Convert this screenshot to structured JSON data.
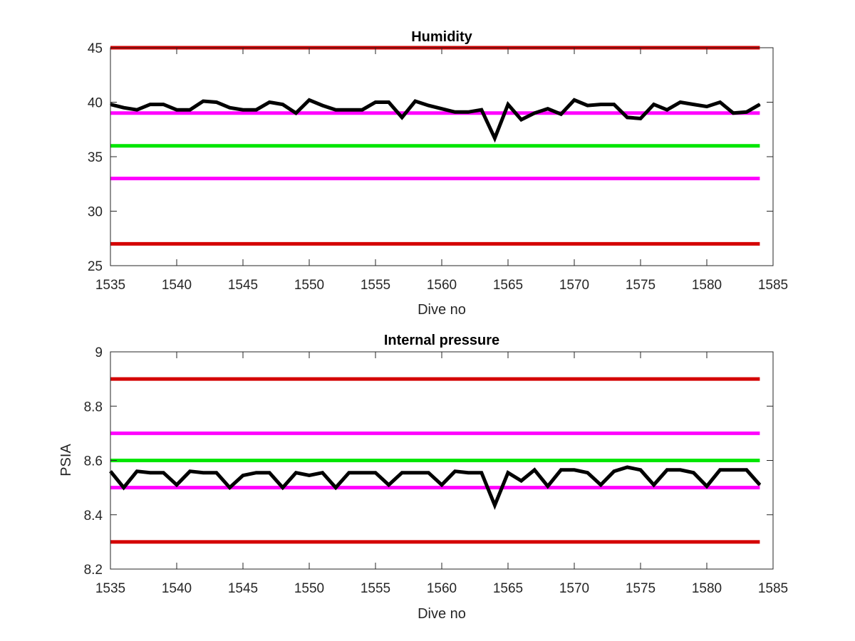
{
  "figure": {
    "background": "#ffffff"
  },
  "chart_data": [
    {
      "type": "line",
      "title": "Humidity",
      "xlabel": "Dive no",
      "ylabel": "",
      "xlim": [
        1535,
        1585
      ],
      "ylim": [
        25,
        45
      ],
      "xticks": [
        1535,
        1540,
        1545,
        1550,
        1555,
        1560,
        1565,
        1570,
        1575,
        1580,
        1585
      ],
      "yticks": [
        25,
        30,
        35,
        40,
        45
      ],
      "grid": false,
      "legend": "none",
      "reference_lines": [
        {
          "y": 45,
          "color": "#d40000"
        },
        {
          "y": 39,
          "color": "#ff00ff"
        },
        {
          "y": 36,
          "color": "#00e600"
        },
        {
          "y": 33,
          "color": "#ff00ff"
        },
        {
          "y": 27,
          "color": "#d40000"
        }
      ],
      "series": [
        {
          "color": "#000000",
          "x": [
            1535,
            1536,
            1537,
            1538,
            1539,
            1540,
            1541,
            1542,
            1543,
            1544,
            1545,
            1546,
            1547,
            1548,
            1549,
            1550,
            1551,
            1552,
            1553,
            1554,
            1555,
            1556,
            1557,
            1558,
            1559,
            1560,
            1561,
            1562,
            1563,
            1564,
            1565,
            1566,
            1567,
            1568,
            1569,
            1570,
            1571,
            1572,
            1573,
            1574,
            1575,
            1576,
            1577,
            1578,
            1579,
            1580,
            1581,
            1582,
            1583,
            1584
          ],
          "y": [
            39.8,
            39.5,
            39.3,
            39.8,
            39.8,
            39.3,
            39.3,
            40.1,
            40.0,
            39.5,
            39.3,
            39.3,
            40.0,
            39.8,
            39.0,
            40.2,
            39.7,
            39.3,
            39.3,
            39.3,
            40.0,
            40.0,
            38.6,
            40.1,
            39.7,
            39.4,
            39.1,
            39.1,
            39.3,
            36.7,
            39.8,
            38.4,
            39.0,
            39.4,
            38.9,
            40.2,
            39.7,
            39.8,
            39.8,
            38.6,
            38.5,
            39.8,
            39.3,
            40.0,
            39.8,
            39.6,
            40.0,
            39.0,
            39.1,
            39.8
          ]
        }
      ]
    },
    {
      "type": "line",
      "title": "Internal pressure",
      "xlabel": "Dive no",
      "ylabel": "PSIA",
      "xlim": [
        1535,
        1585
      ],
      "ylim": [
        8.2,
        9
      ],
      "xticks": [
        1535,
        1540,
        1545,
        1550,
        1555,
        1560,
        1565,
        1570,
        1575,
        1580,
        1585
      ],
      "yticks": [
        8.2,
        8.4,
        8.6,
        8.8,
        9
      ],
      "grid": false,
      "legend": "none",
      "reference_lines": [
        {
          "y": 8.9,
          "color": "#d40000"
        },
        {
          "y": 8.7,
          "color": "#ff00ff"
        },
        {
          "y": 8.6,
          "color": "#00e600"
        },
        {
          "y": 8.5,
          "color": "#ff00ff"
        },
        {
          "y": 8.3,
          "color": "#d40000"
        }
      ],
      "series": [
        {
          "color": "#000000",
          "x": [
            1535,
            1536,
            1537,
            1538,
            1539,
            1540,
            1541,
            1542,
            1543,
            1544,
            1545,
            1546,
            1547,
            1548,
            1549,
            1550,
            1551,
            1552,
            1553,
            1554,
            1555,
            1556,
            1557,
            1558,
            1559,
            1560,
            1561,
            1562,
            1563,
            1564,
            1565,
            1566,
            1567,
            1568,
            1569,
            1570,
            1571,
            1572,
            1573,
            1574,
            1575,
            1576,
            1577,
            1578,
            1579,
            1580,
            1581,
            1582,
            1583,
            1584
          ],
          "y": [
            8.56,
            8.5,
            8.56,
            8.555,
            8.555,
            8.51,
            8.56,
            8.555,
            8.555,
            8.5,
            8.545,
            8.555,
            8.555,
            8.5,
            8.555,
            8.545,
            8.555,
            8.5,
            8.555,
            8.555,
            8.555,
            8.51,
            8.555,
            8.555,
            8.555,
            8.51,
            8.56,
            8.555,
            8.555,
            8.435,
            8.555,
            8.525,
            8.565,
            8.505,
            8.565,
            8.565,
            8.555,
            8.51,
            8.56,
            8.575,
            8.565,
            8.51,
            8.565,
            8.565,
            8.555,
            8.505,
            8.565,
            8.565,
            8.565,
            8.51
          ]
        }
      ]
    }
  ]
}
